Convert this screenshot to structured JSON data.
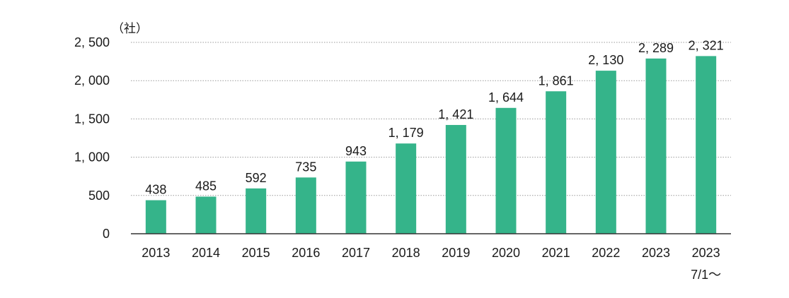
{
  "chart_data": {
    "type": "bar",
    "unit_label": "（社）",
    "categories": [
      "2013",
      "2014",
      "2015",
      "2016",
      "2017",
      "2018",
      "2019",
      "2020",
      "2021",
      "2022",
      "2023",
      "2023"
    ],
    "category_sublabels": [
      "",
      "",
      "",
      "",
      "",
      "",
      "",
      "",
      "",
      "",
      "",
      "7/1～"
    ],
    "values": [
      438,
      485,
      592,
      735,
      943,
      1179,
      1421,
      1644,
      1861,
      2130,
      2289,
      2321
    ],
    "value_labels": [
      "438",
      "485",
      "592",
      "735",
      "943",
      "1, 179",
      "1, 421",
      "1, 644",
      "1, 861",
      "2, 130",
      "2, 289",
      "2, 321"
    ],
    "y_ticks": [
      0,
      500,
      1000,
      1500,
      2000,
      2500
    ],
    "y_tick_labels": [
      "0",
      "500",
      "1, 000",
      "1, 500",
      "2, 000",
      "2, 500"
    ],
    "ylim": [
      0,
      2500
    ],
    "grid": true,
    "bar_color": "#35b48a",
    "title": "",
    "xlabel": "",
    "ylabel": ""
  }
}
